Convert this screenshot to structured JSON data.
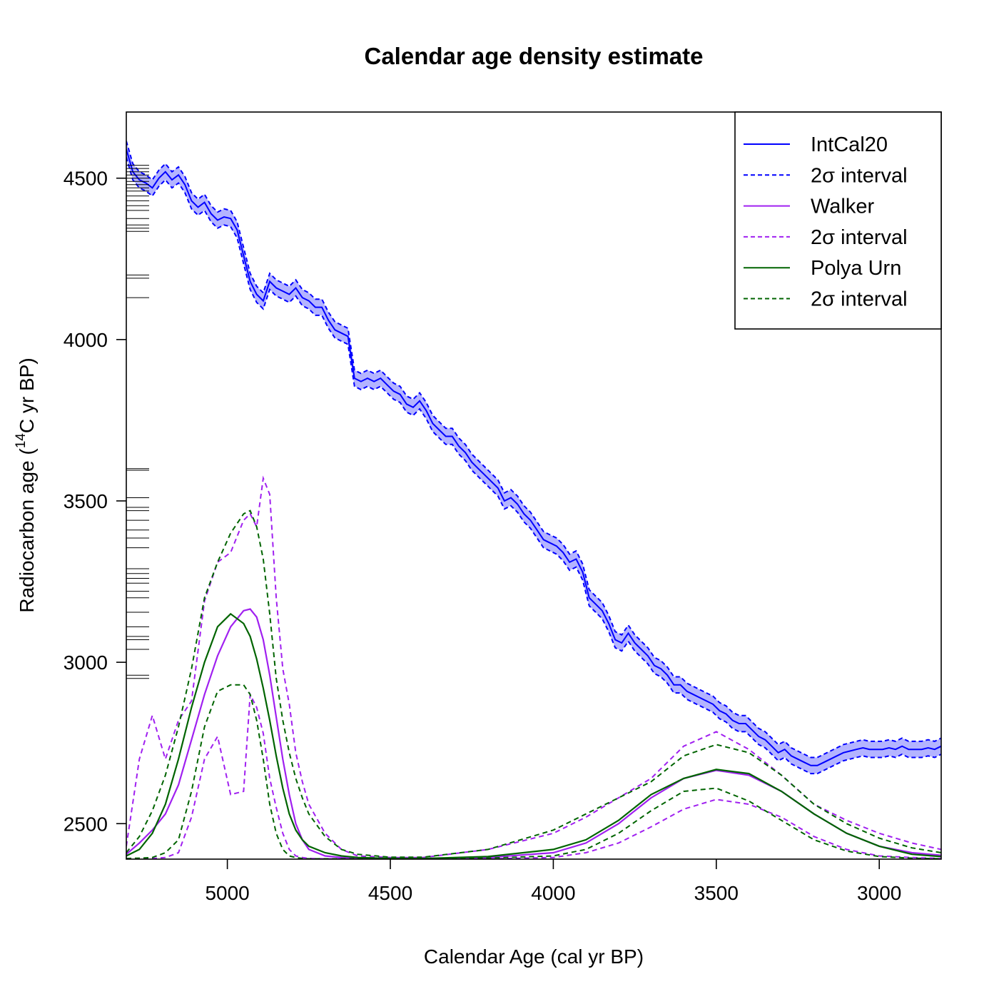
{
  "chart_data": {
    "type": "line",
    "title": "Calendar age density estimate",
    "xlabel": "Calendar Age (cal yr BP)",
    "ylabel_pre": "Radiocarbon age (",
    "ylabel_sup": "14",
    "ylabel_post": "C yr BP)",
    "x_reversed": true,
    "xlim": [
      5310,
      2810
    ],
    "ylim": [
      2390,
      4705
    ],
    "x_ticks": [
      5000,
      4500,
      4000,
      3500,
      3000
    ],
    "y_ticks": [
      2500,
      3000,
      3500,
      4000,
      4500
    ],
    "legend": {
      "position": "top-right",
      "entries": [
        {
          "label": "IntCal20",
          "color": "#0000ff",
          "dashed": false
        },
        {
          "label": "2σ interval",
          "color": "#0000ff",
          "dashed": true
        },
        {
          "label": "Walker",
          "color": "#a020f0",
          "dashed": false
        },
        {
          "label": "2σ interval",
          "color": "#a020f0",
          "dashed": true
        },
        {
          "label": "Polya Urn",
          "color": "#006400",
          "dashed": false
        },
        {
          "label": "2σ interval",
          "color": "#006400",
          "dashed": true
        }
      ]
    },
    "colors": {
      "intcal": "#0000ff",
      "intcal_band": "#b4b4ff",
      "walker": "#a020f0",
      "polya": "#006400",
      "rug": "#000000"
    },
    "intcal20": {
      "x": [
        5310,
        5290,
        5270,
        5250,
        5230,
        5210,
        5190,
        5170,
        5150,
        5130,
        5110,
        5090,
        5070,
        5050,
        5030,
        5010,
        4990,
        4970,
        4950,
        4930,
        4910,
        4890,
        4870,
        4850,
        4830,
        4810,
        4790,
        4770,
        4750,
        4730,
        4710,
        4690,
        4670,
        4650,
        4630,
        4610,
        4590,
        4570,
        4550,
        4530,
        4510,
        4490,
        4470,
        4450,
        4430,
        4410,
        4390,
        4370,
        4350,
        4330,
        4310,
        4290,
        4270,
        4250,
        4230,
        4210,
        4190,
        4170,
        4150,
        4130,
        4110,
        4090,
        4070,
        4050,
        4030,
        4010,
        3990,
        3970,
        3950,
        3930,
        3910,
        3890,
        3870,
        3850,
        3830,
        3810,
        3790,
        3770,
        3750,
        3730,
        3710,
        3690,
        3670,
        3650,
        3630,
        3610,
        3590,
        3570,
        3550,
        3530,
        3510,
        3490,
        3470,
        3450,
        3430,
        3410,
        3390,
        3370,
        3350,
        3330,
        3310,
        3290,
        3270,
        3250,
        3230,
        3210,
        3190,
        3170,
        3150,
        3130,
        3110,
        3090,
        3070,
        3050,
        3030,
        3010,
        2990,
        2970,
        2950,
        2930,
        2910,
        2890,
        2870,
        2850,
        2830,
        2810
      ],
      "y": [
        4590,
        4520,
        4495,
        4485,
        4470,
        4500,
        4520,
        4495,
        4510,
        4480,
        4430,
        4410,
        4425,
        4390,
        4370,
        4380,
        4375,
        4340,
        4260,
        4180,
        4140,
        4120,
        4180,
        4160,
        4150,
        4140,
        4160,
        4130,
        4120,
        4100,
        4100,
        4060,
        4030,
        4020,
        4010,
        3880,
        3870,
        3880,
        3870,
        3880,
        3860,
        3840,
        3830,
        3800,
        3790,
        3810,
        3780,
        3740,
        3720,
        3700,
        3700,
        3670,
        3650,
        3620,
        3600,
        3580,
        3560,
        3540,
        3500,
        3510,
        3490,
        3460,
        3440,
        3410,
        3380,
        3370,
        3360,
        3340,
        3310,
        3320,
        3280,
        3200,
        3180,
        3160,
        3120,
        3070,
        3060,
        3090,
        3060,
        3040,
        3020,
        2990,
        2980,
        2960,
        2930,
        2930,
        2910,
        2900,
        2890,
        2880,
        2870,
        2850,
        2840,
        2820,
        2810,
        2810,
        2790,
        2770,
        2760,
        2740,
        2720,
        2730,
        2710,
        2700,
        2690,
        2680,
        2680,
        2690,
        2700,
        2710,
        2720,
        2725,
        2730,
        2735,
        2730,
        2730,
        2730,
        2735,
        2730,
        2740,
        2730,
        2730,
        2730,
        2735,
        2730,
        2740
      ],
      "halfwidth": 25
    },
    "walker": {
      "x": [
        5310,
        5270,
        5230,
        5190,
        5150,
        5110,
        5070,
        5030,
        4990,
        4950,
        4930,
        4910,
        4890,
        4870,
        4850,
        4830,
        4810,
        4790,
        4770,
        4750,
        4700,
        4650,
        4600,
        4500,
        4400,
        4200,
        4000,
        3900,
        3800,
        3700,
        3600,
        3500,
        3400,
        3300,
        3200,
        3100,
        3000,
        2900,
        2810
      ],
      "mean": [
        2405,
        2440,
        2480,
        2530,
        2620,
        2760,
        2900,
        3020,
        3110,
        3160,
        3165,
        3140,
        3070,
        2960,
        2830,
        2700,
        2590,
        2500,
        2450,
        2420,
        2400,
        2395,
        2392,
        2391,
        2391,
        2395,
        2410,
        2440,
        2500,
        2580,
        2640,
        2665,
        2650,
        2600,
        2530,
        2470,
        2430,
        2410,
        2402
      ],
      "upper": [
        2430,
        2700,
        2835,
        2700,
        2820,
        2880,
        3190,
        3310,
        3340,
        3440,
        3460,
        3420,
        3570,
        3520,
        3200,
        2980,
        2870,
        2720,
        2630,
        2560,
        2470,
        2420,
        2400,
        2395,
        2395,
        2420,
        2470,
        2520,
        2580,
        2640,
        2740,
        2785,
        2730,
        2650,
        2560,
        2510,
        2470,
        2440,
        2420
      ],
      "lower": [
        2392,
        2392,
        2392,
        2395,
        2410,
        2520,
        2700,
        2770,
        2590,
        2600,
        2900,
        2860,
        2780,
        2640,
        2550,
        2470,
        2420,
        2400,
        2395,
        2392,
        2391,
        2391,
        2391,
        2391,
        2391,
        2391,
        2395,
        2410,
        2440,
        2490,
        2545,
        2575,
        2560,
        2520,
        2460,
        2420,
        2400,
        2395,
        2392
      ]
    },
    "polya": {
      "x": [
        5310,
        5270,
        5230,
        5190,
        5150,
        5110,
        5070,
        5030,
        4990,
        4950,
        4930,
        4910,
        4890,
        4870,
        4850,
        4830,
        4810,
        4790,
        4770,
        4750,
        4700,
        4650,
        4600,
        4500,
        4400,
        4200,
        4000,
        3900,
        3800,
        3700,
        3600,
        3500,
        3400,
        3300,
        3200,
        3100,
        3000,
        2900,
        2810
      ],
      "mean": [
        2400,
        2420,
        2470,
        2560,
        2700,
        2860,
        3000,
        3110,
        3150,
        3120,
        3080,
        3010,
        2920,
        2820,
        2710,
        2610,
        2530,
        2480,
        2450,
        2430,
        2410,
        2400,
        2395,
        2392,
        2392,
        2398,
        2420,
        2450,
        2510,
        2590,
        2640,
        2668,
        2655,
        2600,
        2530,
        2470,
        2430,
        2405,
        2398
      ],
      "upper": [
        2410,
        2460,
        2540,
        2650,
        2800,
        2980,
        3200,
        3310,
        3400,
        3460,
        3470,
        3420,
        3320,
        3150,
        2950,
        2820,
        2720,
        2640,
        2580,
        2530,
        2460,
        2420,
        2405,
        2396,
        2396,
        2420,
        2480,
        2530,
        2580,
        2630,
        2710,
        2745,
        2720,
        2650,
        2560,
        2500,
        2455,
        2425,
        2410
      ],
      "lower": [
        2392,
        2393,
        2395,
        2410,
        2450,
        2600,
        2800,
        2910,
        2930,
        2930,
        2900,
        2820,
        2700,
        2560,
        2470,
        2420,
        2400,
        2395,
        2392,
        2391,
        2391,
        2391,
        2391,
        2391,
        2391,
        2393,
        2400,
        2420,
        2470,
        2540,
        2600,
        2610,
        2570,
        2510,
        2450,
        2415,
        2398,
        2393,
        2391
      ]
    },
    "rug_y": [
      4540,
      4530,
      4520,
      4510,
      4500,
      4490,
      4480,
      4470,
      4460,
      4445,
      4430,
      4415,
      4400,
      4375,
      4355,
      4345,
      4335,
      4200,
      4190,
      4130,
      3600,
      3595,
      3510,
      3480,
      3470,
      3440,
      3410,
      3385,
      3355,
      3290,
      3275,
      3260,
      3245,
      3220,
      3200,
      3155,
      3110,
      3080,
      3070,
      3040,
      2960,
      2950
    ]
  }
}
